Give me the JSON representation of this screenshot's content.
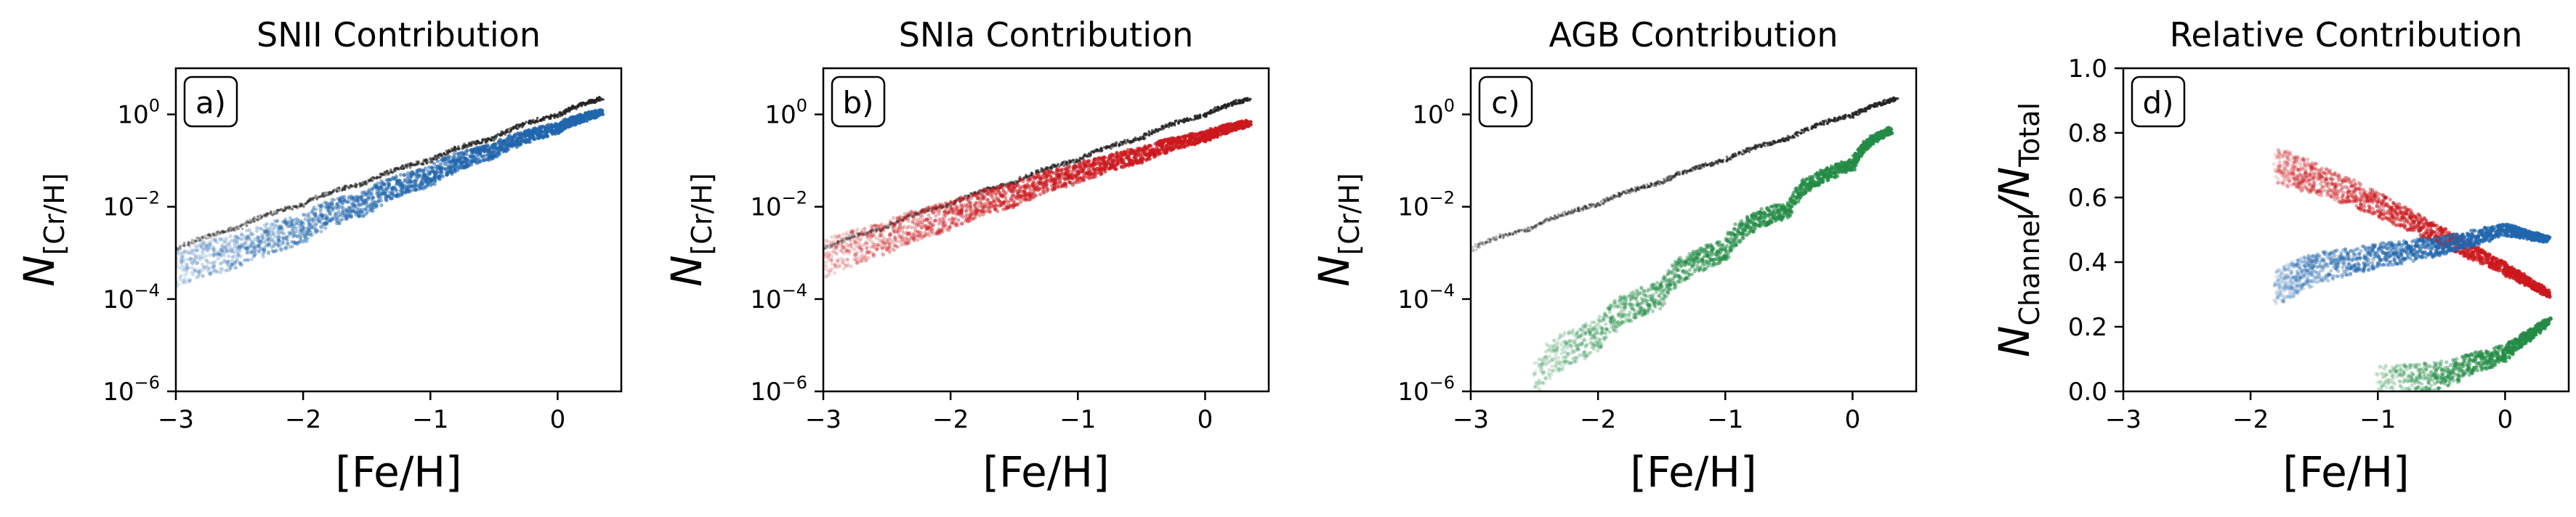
{
  "chart_data": [
    {
      "panel": "a)",
      "type": "scatter",
      "title": "SNII Contribution",
      "xlabel": "[Fe/H]",
      "ylabel": "N_[Cr/H]",
      "xlim": [
        -3,
        0.5
      ],
      "ylim": [
        1e-06,
        10
      ],
      "yscale": "log",
      "xticks": [
        -3,
        -2,
        -1,
        0
      ],
      "xtick_labels": [
        "−3",
        "−2",
        "−1",
        "0"
      ],
      "yticks": [
        1e-06,
        0.0001,
        0.01,
        1
      ],
      "ytick_labels": [
        [
          "10",
          "−6"
        ],
        [
          "10",
          "−4"
        ],
        [
          "10",
          "−2"
        ],
        [
          "10",
          "0"
        ]
      ],
      "series": [
        {
          "color": "#222222",
          "x": [
            -3.0,
            -2.5,
            -2.0,
            -1.5,
            -1.0,
            -0.5,
            0.0,
            0.35
          ],
          "y": [
            0.00115,
            0.0035,
            0.011,
            0.033,
            0.1,
            0.3,
            0.95,
            2.2
          ]
        },
        {
          "color": "#2166ac",
          "x": [
            -3.0,
            -2.5,
            -2.0,
            -1.5,
            -1.0,
            -0.5,
            0.0,
            0.35
          ],
          "y": [
            0.00045,
            0.0011,
            0.0032,
            0.012,
            0.045,
            0.16,
            0.5,
            1.1
          ]
        }
      ]
    },
    {
      "panel": "b)",
      "type": "scatter",
      "title": "SNIa Contribution",
      "xlabel": "[Fe/H]",
      "ylabel": "N_[Cr/H]",
      "xlim": [
        -3,
        0.5
      ],
      "ylim": [
        1e-06,
        10
      ],
      "yscale": "log",
      "xticks": [
        -3,
        -2,
        -1,
        0
      ],
      "xtick_labels": [
        "−3",
        "−2",
        "−1",
        "0"
      ],
      "yticks": [
        1e-06,
        0.0001,
        0.01,
        1
      ],
      "ytick_labels": [
        [
          "10",
          "−6"
        ],
        [
          "10",
          "−4"
        ],
        [
          "10",
          "−2"
        ],
        [
          "10",
          "0"
        ]
      ],
      "series": [
        {
          "color": "#222222",
          "x": [
            -3.0,
            -2.5,
            -2.0,
            -1.5,
            -1.0,
            -0.5,
            0.0,
            0.35
          ],
          "y": [
            0.00115,
            0.0035,
            0.011,
            0.033,
            0.1,
            0.3,
            0.95,
            2.2
          ]
        },
        {
          "color": "#cb181d",
          "x": [
            -3.0,
            -2.5,
            -2.0,
            -1.5,
            -1.0,
            -0.5,
            0.0,
            0.35
          ],
          "y": [
            0.0007,
            0.002,
            0.0062,
            0.018,
            0.05,
            0.13,
            0.33,
            0.65
          ]
        }
      ]
    },
    {
      "panel": "c)",
      "type": "scatter",
      "title": "AGB Contribution",
      "xlabel": "[Fe/H]",
      "ylabel": "N_[Cr/H]",
      "xlim": [
        -3,
        0.5
      ],
      "ylim": [
        1e-06,
        10
      ],
      "yscale": "log",
      "xticks": [
        -3,
        -2,
        -1,
        0
      ],
      "xtick_labels": [
        "−3",
        "−2",
        "−1",
        "0"
      ],
      "yticks": [
        1e-06,
        0.0001,
        0.01,
        1
      ],
      "ytick_labels": [
        [
          "10",
          "−6"
        ],
        [
          "10",
          "−4"
        ],
        [
          "10",
          "−2"
        ],
        [
          "10",
          "0"
        ]
      ],
      "series": [
        {
          "color": "#222222",
          "x": [
            -3.0,
            -2.5,
            -2.0,
            -1.5,
            -1.0,
            -0.5,
            0.0,
            0.35
          ],
          "y": [
            0.00115,
            0.0035,
            0.011,
            0.033,
            0.1,
            0.3,
            0.95,
            2.2
          ]
        },
        {
          "color": "#238b45",
          "x": [
            -2.5,
            -2.0,
            -1.5,
            -1.0,
            -0.5,
            0.0,
            0.3
          ],
          "y": [
            1.5e-06,
            1.5e-05,
            0.00012,
            0.0011,
            0.009,
            0.08,
            0.45
          ]
        }
      ]
    },
    {
      "panel": "d)",
      "type": "scatter",
      "title": "Relative Contribution",
      "xlabel": "[Fe/H]",
      "ylabel": "N_Channel/N_Total",
      "xlim": [
        -3,
        0.5
      ],
      "ylim": [
        0,
        1
      ],
      "yscale": "linear",
      "xticks": [
        -3,
        -2,
        -1,
        0
      ],
      "xtick_labels": [
        "−3",
        "−2",
        "−1",
        "0"
      ],
      "yticks": [
        0,
        0.2,
        0.4,
        0.6,
        0.8,
        1.0
      ],
      "ytick_labels": [
        "0.0",
        "0.2",
        "0.4",
        "0.6",
        "0.8",
        "1.0"
      ],
      "series": [
        {
          "color": "#cb181d",
          "x": [
            -1.8,
            -1.5,
            -1.0,
            -0.5,
            0.0,
            0.35
          ],
          "y": [
            0.7,
            0.66,
            0.58,
            0.48,
            0.38,
            0.3
          ]
        },
        {
          "color": "#2166ac",
          "x": [
            -1.8,
            -1.5,
            -1.0,
            -0.5,
            0.0,
            0.35
          ],
          "y": [
            0.32,
            0.38,
            0.42,
            0.45,
            0.5,
            0.47
          ]
        },
        {
          "color": "#238b45",
          "x": [
            -1.0,
            -0.5,
            0.0,
            0.35
          ],
          "y": [
            0.02,
            0.05,
            0.12,
            0.22
          ]
        }
      ]
    }
  ]
}
